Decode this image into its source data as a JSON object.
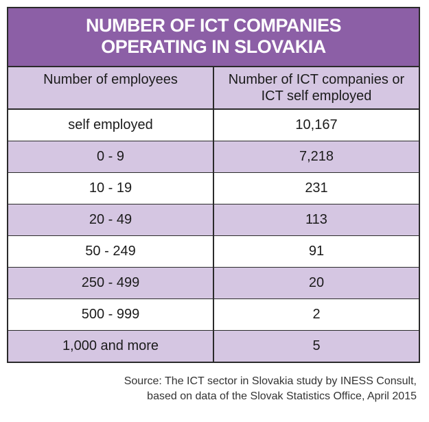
{
  "chart_data": {
    "type": "table",
    "title_line1": "NUMBER OF ICT COMPANIES",
    "title_line2": "OPERATING IN SLOVAKIA",
    "columns": [
      "Number of employees",
      "Number of ICT companies or ICT self employed"
    ],
    "rows": [
      {
        "category": "self employed",
        "value": "10,167"
      },
      {
        "category": "0 - 9",
        "value": "7,218"
      },
      {
        "category": "10 - 19",
        "value": "231"
      },
      {
        "category": "20 - 49",
        "value": "113"
      },
      {
        "category": "50 - 249",
        "value": "91"
      },
      {
        "category": "250 - 499",
        "value": "20"
      },
      {
        "category": "500 - 999",
        "value": "2"
      },
      {
        "category": "1,000 and more",
        "value": "5"
      }
    ],
    "source_line1": "Source: The ICT sector in Slovakia study by INESS Consult,",
    "source_line2": "based on data of the Slovak Statistics Office, April 2015"
  },
  "colors": {
    "title_bg": "#8c5fa6",
    "stripe": "#d5c6e2",
    "border": "#2a2a2a"
  }
}
